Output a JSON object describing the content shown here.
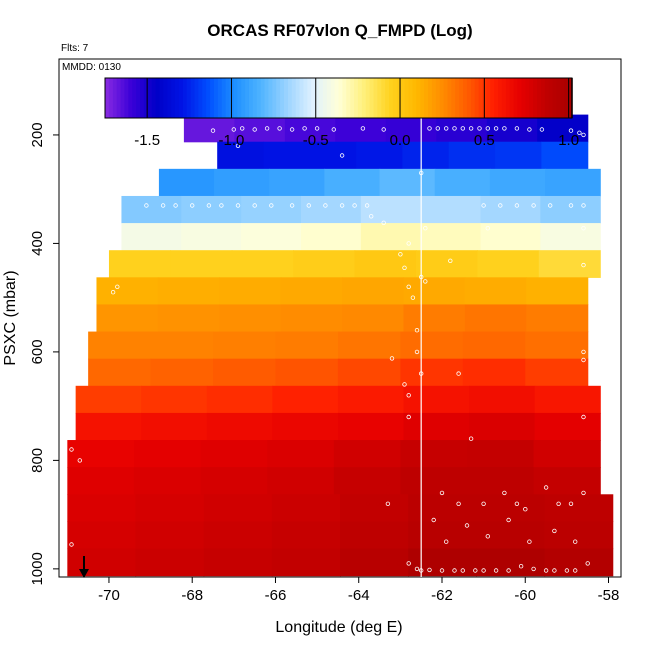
{
  "chart_data": {
    "type": "heatmap",
    "title": "ORCAS RF07vlon Q_FMPD (Log)",
    "subtitle_flts": "Flts: 7",
    "subtitle_mmdd": "MMDD: 0130",
    "xlabel": "Longitude (deg E)",
    "ylabel": "PSXC (mbar)",
    "xlim": [
      -71.2,
      -57.7
    ],
    "ylim": [
      1015,
      60
    ],
    "x_ticks": [
      -70,
      -68,
      -66,
      -64,
      -62,
      -60,
      -58
    ],
    "x_tick_labels": [
      "-70",
      "-68",
      "-66",
      "-64",
      "-62",
      "-60",
      "-58"
    ],
    "y_ticks": [
      200,
      400,
      600,
      800,
      1000
    ],
    "y_tick_labels": [
      "200",
      "400",
      "600",
      "800",
      "1000"
    ],
    "colorbar": {
      "range": [
        -1.75,
        1.02
      ],
      "ticks": [
        -1.5,
        -1.0,
        -0.5,
        0.0,
        0.5,
        1.0
      ],
      "tick_labels": [
        "-1.5",
        "-1.0",
        "-0.5",
        "0.0",
        "0.5",
        "1.0"
      ],
      "colors": [
        "#8a2be2",
        "#3b00d8",
        "#0000c8",
        "#0014e6",
        "#0050ff",
        "#1e90ff",
        "#4fb4ff",
        "#9ad3ff",
        "#dff1ff",
        "#ffffd8",
        "#fff07a",
        "#ffd21e",
        "#ffb800",
        "#ff8c00",
        "#ff5a00",
        "#ff1e00",
        "#e60000",
        "#c00000",
        "#a80000"
      ]
    },
    "vertical_line_x": -62.5,
    "bins": [
      {
        "p": 187.5,
        "x_start": -68.2,
        "x_end": -58.5,
        "values": [
          -1.68,
          -1.65,
          -1.62,
          -1.6,
          -1.58,
          -1.55,
          -1.5,
          -1.45
        ]
      },
      {
        "p": 237.5,
        "x_start": -67.4,
        "x_end": -58.5,
        "values": [
          -1.32,
          -1.3,
          -1.3,
          -1.28,
          -1.25,
          -1.22,
          -1.2,
          -1.15
        ]
      },
      {
        "p": 287.5,
        "x_start": -68.8,
        "x_end": -58.2,
        "values": [
          -0.95,
          -0.92,
          -0.9,
          -0.85,
          -0.8,
          -0.85,
          -0.88,
          -0.9
        ]
      },
      {
        "p": 337.5,
        "x_start": -69.7,
        "x_end": -58.2,
        "values": [
          -0.72,
          -0.7,
          -0.68,
          -0.65,
          -0.6,
          -0.62,
          -0.65,
          -0.7
        ]
      },
      {
        "p": 387.5,
        "x_start": -69.7,
        "x_end": -58.2,
        "values": [
          -0.42,
          -0.4,
          -0.38,
          -0.35,
          -0.3,
          -0.32,
          -0.35,
          -0.4
        ]
      },
      {
        "p": 437.5,
        "x_start": -70.0,
        "x_end": -58.2,
        "values": [
          -0.05,
          -0.05,
          -0.05,
          -0.03,
          0.0,
          -0.02,
          -0.05,
          -0.1
        ]
      },
      {
        "p": 487.5,
        "x_start": -70.3,
        "x_end": -58.5,
        "values": [
          0.12,
          0.13,
          0.14,
          0.15,
          0.16,
          0.15,
          0.14,
          0.12
        ]
      },
      {
        "p": 537.5,
        "x_start": -70.3,
        "x_end": -58.5,
        "values": [
          0.22,
          0.23,
          0.24,
          0.25,
          0.26,
          0.3,
          0.32,
          0.3
        ]
      },
      {
        "p": 587.5,
        "x_start": -70.5,
        "x_end": -58.5,
        "values": [
          0.28,
          0.28,
          0.29,
          0.3,
          0.32,
          0.35,
          0.36,
          0.34
        ]
      },
      {
        "p": 637.5,
        "x_start": -70.5,
        "x_end": -58.5,
        "values": [
          0.36,
          0.38,
          0.4,
          0.42,
          0.45,
          0.5,
          0.52,
          0.48
        ]
      },
      {
        "p": 687.5,
        "x_start": -70.8,
        "x_end": -58.2,
        "values": [
          0.48,
          0.5,
          0.52,
          0.55,
          0.58,
          0.62,
          0.64,
          0.6
        ]
      },
      {
        "p": 737.5,
        "x_start": -70.8,
        "x_end": -58.2,
        "values": [
          0.62,
          0.64,
          0.66,
          0.68,
          0.7,
          0.74,
          0.76,
          0.72
        ]
      },
      {
        "p": 787.5,
        "x_start": -71.0,
        "x_end": -58.2,
        "values": [
          0.7,
          0.72,
          0.74,
          0.76,
          0.8,
          0.84,
          0.85,
          0.8
        ]
      },
      {
        "p": 837.5,
        "x_start": -71.0,
        "x_end": -58.2,
        "values": [
          0.74,
          0.76,
          0.78,
          0.8,
          0.84,
          0.88,
          0.88,
          0.85
        ]
      },
      {
        "p": 887.5,
        "x_start": -71.0,
        "x_end": -57.9,
        "values": [
          0.76,
          0.78,
          0.8,
          0.82,
          0.86,
          0.9,
          0.9,
          0.88
        ]
      },
      {
        "p": 937.5,
        "x_start": -71.0,
        "x_end": -57.9,
        "values": [
          0.78,
          0.8,
          0.82,
          0.84,
          0.88,
          0.92,
          0.92,
          0.9
        ]
      },
      {
        "p": 987.5,
        "x_start": -71.0,
        "x_end": -57.9,
        "values": [
          0.8,
          0.82,
          0.84,
          0.86,
          0.92,
          0.98,
          0.98,
          0.95
        ]
      }
    ],
    "observations": [
      [
        -67.5,
        192
      ],
      [
        -67.0,
        190
      ],
      [
        -66.8,
        188
      ],
      [
        -66.5,
        190
      ],
      [
        -66.2,
        188
      ],
      [
        -65.9,
        188
      ],
      [
        -65.6,
        190
      ],
      [
        -65.3,
        188
      ],
      [
        -65.0,
        188
      ],
      [
        -64.6,
        190
      ],
      [
        -63.9,
        188
      ],
      [
        -63.4,
        190
      ],
      [
        -62.3,
        188
      ],
      [
        -62.1,
        188
      ],
      [
        -61.9,
        188
      ],
      [
        -61.7,
        188
      ],
      [
        -61.5,
        188
      ],
      [
        -61.3,
        188
      ],
      [
        -61.1,
        188
      ],
      [
        -60.9,
        188
      ],
      [
        -60.7,
        188
      ],
      [
        -60.5,
        188
      ],
      [
        -60.2,
        188
      ],
      [
        -59.9,
        190
      ],
      [
        -59.6,
        190
      ],
      [
        -58.9,
        192
      ],
      [
        -58.7,
        196
      ],
      [
        -58.6,
        200
      ],
      [
        -66.9,
        220
      ],
      [
        -64.4,
        238
      ],
      [
        -62.5,
        270
      ],
      [
        -69.1,
        330
      ],
      [
        -68.7,
        330
      ],
      [
        -68.4,
        330
      ],
      [
        -68.0,
        330
      ],
      [
        -67.6,
        330
      ],
      [
        -67.3,
        330
      ],
      [
        -66.9,
        330
      ],
      [
        -66.5,
        330
      ],
      [
        -66.1,
        330
      ],
      [
        -65.6,
        330
      ],
      [
        -65.2,
        330
      ],
      [
        -64.8,
        330
      ],
      [
        -64.4,
        330
      ],
      [
        -64.1,
        330
      ],
      [
        -63.8,
        330
      ],
      [
        -61.0,
        330
      ],
      [
        -60.6,
        330
      ],
      [
        -60.2,
        330
      ],
      [
        -59.8,
        330
      ],
      [
        -59.4,
        330
      ],
      [
        -58.9,
        330
      ],
      [
        -58.6,
        330
      ],
      [
        -63.7,
        350
      ],
      [
        -63.4,
        362
      ],
      [
        -62.8,
        400
      ],
      [
        -62.4,
        372
      ],
      [
        -60.9,
        372
      ],
      [
        -58.6,
        372
      ],
      [
        -63.0,
        420
      ],
      [
        -62.9,
        445
      ],
      [
        -62.5,
        462
      ],
      [
        -61.8,
        432
      ],
      [
        -58.6,
        440
      ],
      [
        -69.8,
        480
      ],
      [
        -69.9,
        490
      ],
      [
        -62.8,
        480
      ],
      [
        -62.7,
        500
      ],
      [
        -62.4,
        470
      ],
      [
        -62.6,
        560
      ],
      [
        -62.6,
        600
      ],
      [
        -62.5,
        640
      ],
      [
        -63.2,
        612
      ],
      [
        -61.6,
        640
      ],
      [
        -62.9,
        660
      ],
      [
        -62.8,
        680
      ],
      [
        -58.6,
        600
      ],
      [
        -58.6,
        615
      ],
      [
        -62.8,
        720
      ],
      [
        -61.3,
        760
      ],
      [
        -58.6,
        720
      ],
      [
        -70.9,
        780
      ],
      [
        -70.7,
        800
      ],
      [
        -62.0,
        860
      ],
      [
        -61.6,
        880
      ],
      [
        -61.0,
        880
      ],
      [
        -60.5,
        860
      ],
      [
        -60.2,
        880
      ],
      [
        -60.0,
        890
      ],
      [
        -59.5,
        850
      ],
      [
        -59.2,
        880
      ],
      [
        -58.9,
        880
      ],
      [
        -58.6,
        860
      ],
      [
        -63.3,
        880
      ],
      [
        -62.2,
        910
      ],
      [
        -61.9,
        950
      ],
      [
        -61.4,
        920
      ],
      [
        -60.9,
        940
      ],
      [
        -60.4,
        910
      ],
      [
        -59.9,
        950
      ],
      [
        -59.3,
        930
      ],
      [
        -58.8,
        950
      ],
      [
        -62.8,
        990
      ],
      [
        -62.6,
        1000
      ],
      [
        -62.5,
        1003
      ],
      [
        -62.3,
        1002
      ],
      [
        -62.0,
        1003
      ],
      [
        -61.7,
        1003
      ],
      [
        -61.5,
        1003
      ],
      [
        -61.2,
        1003
      ],
      [
        -61.0,
        1003
      ],
      [
        -60.7,
        1003
      ],
      [
        -60.4,
        1003
      ],
      [
        -60.1,
        995
      ],
      [
        -59.8,
        1000
      ],
      [
        -59.5,
        1003
      ],
      [
        -59.3,
        1003
      ],
      [
        -59.0,
        1003
      ],
      [
        -58.8,
        1003
      ],
      [
        -58.5,
        990
      ],
      [
        -70.9,
        955
      ]
    ]
  }
}
